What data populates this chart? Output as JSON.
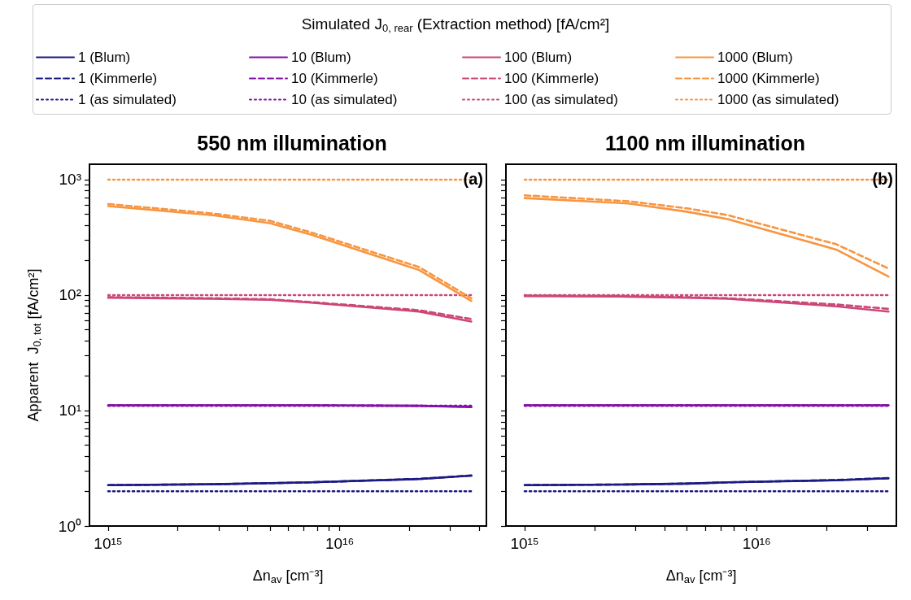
{
  "chart_data": [
    {
      "type": "line",
      "title": "550 nm illumination",
      "xlabel": "Δn$_{av}$ [cm⁻³]",
      "ylabel": "Apparent  J$_{0, tot}$ [fA/cm²]",
      "legend_title": "Simulated J$_{0, rear}$ (Extraction method) [fA/cm²]",
      "legend": "top",
      "grid": false,
      "log": "xy",
      "annotations": [
        "(a)"
      ],
      "x": [
        1000000000000000.0,
        2800000000000000.0,
        5000000000000000.0,
        7500000000000000.0,
        2.2e+16,
        3.7e+16
      ],
      "xlim": [
        830000000000000.0,
        4.3e+16
      ],
      "xticks": [
        {
          "value": 1000000000000000.0,
          "label": "10¹⁵"
        },
        {
          "value": 2000000000000000.0,
          "label": null
        },
        {
          "value": 3000000000000000.0,
          "label": null
        },
        {
          "value": 4000000000000000.0,
          "label": null
        },
        {
          "value": 5000000000000000.0,
          "label": null
        },
        {
          "value": 6000000000000000.0,
          "label": null
        },
        {
          "value": 7000000000000000.0,
          "label": null
        },
        {
          "value": 8000000000000000.0,
          "label": null
        },
        {
          "value": 9000000000000000.0,
          "label": null
        },
        {
          "value": 1e+16,
          "label": "10¹⁶"
        },
        {
          "value": 2e+16,
          "label": null
        },
        {
          "value": 3e+16,
          "label": null
        },
        {
          "value": 4e+16,
          "label": null
        }
      ],
      "ylim": [
        1,
        1360
      ],
      "yticks": [
        {
          "value": 1,
          "label": "10⁰"
        },
        {
          "value": 2,
          "label": null
        },
        {
          "value": 3,
          "label": null
        },
        {
          "value": 4,
          "label": null
        },
        {
          "value": 5,
          "label": null
        },
        {
          "value": 6,
          "label": null
        },
        {
          "value": 7,
          "label": null
        },
        {
          "value": 8,
          "label": null
        },
        {
          "value": 9,
          "label": null
        },
        {
          "value": 10,
          "label": "10¹"
        },
        {
          "value": 20,
          "label": null
        },
        {
          "value": 30,
          "label": null
        },
        {
          "value": 40,
          "label": null
        },
        {
          "value": 50,
          "label": null
        },
        {
          "value": 60,
          "label": null
        },
        {
          "value": 70,
          "label": null
        },
        {
          "value": 80,
          "label": null
        },
        {
          "value": 90,
          "label": null
        },
        {
          "value": 100,
          "label": "10²"
        },
        {
          "value": 200,
          "label": null
        },
        {
          "value": 300,
          "label": null
        },
        {
          "value": 400,
          "label": null
        },
        {
          "value": 500,
          "label": null
        },
        {
          "value": 600,
          "label": null
        },
        {
          "value": 700,
          "label": null
        },
        {
          "value": 800,
          "label": null
        },
        {
          "value": 900,
          "label": null
        },
        {
          "value": 1000,
          "label": "10³"
        }
      ],
      "series": [
        {
          "name": "1 (Blum)",
          "color": "#1c1a83",
          "line_style": "solid",
          "values": [
            2.26,
            2.3,
            2.35,
            2.39,
            2.55,
            2.73
          ]
        },
        {
          "name": "1 (Kimmerle)",
          "color": "#1c1a83",
          "line_style": "dashed",
          "values": [
            2.26,
            2.3,
            2.35,
            2.39,
            2.56,
            2.74
          ]
        },
        {
          "name": "1 (as simulated)",
          "color": "#1c1a83",
          "line_style": "dotted",
          "values": [
            2,
            2,
            2,
            2,
            2,
            2
          ]
        },
        {
          "name": "10 (Blum)",
          "color": "#8212a8",
          "line_style": "solid",
          "values": [
            11.1,
            11.1,
            11.1,
            11.1,
            11,
            10.7
          ]
        },
        {
          "name": "10 (Kimmerle)",
          "color": "#8212a8",
          "line_style": "dashed",
          "values": [
            11.1,
            11.1,
            11.1,
            11.1,
            11,
            10.8
          ]
        },
        {
          "name": "10 (as simulated)",
          "color": "#8212a8",
          "line_style": "dotted",
          "values": [
            11,
            11,
            11,
            11,
            11,
            11
          ]
        },
        {
          "name": "100 (Blum)",
          "color": "#cc4778",
          "line_style": "solid",
          "values": [
            95,
            93,
            91,
            86,
            72,
            59
          ]
        },
        {
          "name": "100 (Kimmerle)",
          "color": "#cc4778",
          "line_style": "dashed",
          "values": [
            96,
            94,
            92,
            87,
            74,
            62
          ]
        },
        {
          "name": "100 (as simulated)",
          "color": "#cc4778",
          "line_style": "dotted",
          "values": [
            100,
            100,
            100,
            100,
            100,
            100
          ]
        },
        {
          "name": "1000 (Blum)",
          "color": "#f89540",
          "line_style": "solid",
          "values": [
            590,
            493,
            420,
            334,
            165,
            89
          ]
        },
        {
          "name": "1000 (Kimmerle)",
          "color": "#f89540",
          "line_style": "dashed",
          "values": [
            615,
            510,
            440,
            350,
            175,
            94
          ]
        },
        {
          "name": "1000 (as simulated)",
          "color": "#f89540",
          "line_style": "dotted",
          "values": [
            1000,
            1000,
            1000,
            1000,
            1000,
            1000
          ]
        }
      ]
    },
    {
      "type": "line",
      "title": "1100 nm illumination",
      "xlabel": "Δn$_{av}$ [cm⁻³]",
      "grid": false,
      "log": "xy",
      "tick_labels": "x",
      "annotations": [
        "(b)"
      ],
      "x": [
        1000000000000000.0,
        2800000000000000.0,
        5000000000000000.0,
        7500000000000000.0,
        2.2e+16,
        3.7e+16
      ],
      "xlim": [
        830000000000000.0,
        4e+16
      ],
      "xticks": [
        {
          "value": 1000000000000000.0,
          "label": "10¹⁵"
        },
        {
          "value": 2000000000000000.0,
          "label": null
        },
        {
          "value": 3000000000000000.0,
          "label": null
        },
        {
          "value": 4000000000000000.0,
          "label": null
        },
        {
          "value": 5000000000000000.0,
          "label": null
        },
        {
          "value": 6000000000000000.0,
          "label": null
        },
        {
          "value": 7000000000000000.0,
          "label": null
        },
        {
          "value": 8000000000000000.0,
          "label": null
        },
        {
          "value": 9000000000000000.0,
          "label": null
        },
        {
          "value": 1e+16,
          "label": "10¹⁶"
        },
        {
          "value": 2e+16,
          "label": null
        },
        {
          "value": 3e+16,
          "label": null
        }
      ],
      "ylim": [
        1,
        1360
      ],
      "yticks": [
        {
          "value": 1,
          "label": null
        },
        {
          "value": 2,
          "label": null
        },
        {
          "value": 3,
          "label": null
        },
        {
          "value": 4,
          "label": null
        },
        {
          "value": 5,
          "label": null
        },
        {
          "value": 6,
          "label": null
        },
        {
          "value": 7,
          "label": null
        },
        {
          "value": 8,
          "label": null
        },
        {
          "value": 9,
          "label": null
        },
        {
          "value": 10,
          "label": null
        },
        {
          "value": 20,
          "label": null
        },
        {
          "value": 30,
          "label": null
        },
        {
          "value": 40,
          "label": null
        },
        {
          "value": 50,
          "label": null
        },
        {
          "value": 60,
          "label": null
        },
        {
          "value": 70,
          "label": null
        },
        {
          "value": 80,
          "label": null
        },
        {
          "value": 90,
          "label": null
        },
        {
          "value": 100,
          "label": null
        },
        {
          "value": 200,
          "label": null
        },
        {
          "value": 300,
          "label": null
        },
        {
          "value": 400,
          "label": null
        },
        {
          "value": 500,
          "label": null
        },
        {
          "value": 600,
          "label": null
        },
        {
          "value": 700,
          "label": null
        },
        {
          "value": 800,
          "label": null
        },
        {
          "value": 900,
          "label": null
        },
        {
          "value": 1000,
          "label": null
        }
      ],
      "series": [
        {
          "color": "#1c1a83",
          "line_style": "solid",
          "values": [
            2.26,
            2.29,
            2.33,
            2.39,
            2.49,
            2.59
          ]
        },
        {
          "color": "#1c1a83",
          "line_style": "dashed",
          "values": [
            2.26,
            2.29,
            2.33,
            2.39,
            2.5,
            2.6
          ]
        },
        {
          "color": "#1c1a83",
          "line_style": "dotted",
          "values": [
            2,
            2,
            2,
            2,
            2,
            2
          ]
        },
        {
          "color": "#8212a8",
          "line_style": "solid",
          "values": [
            11.1,
            11.1,
            11.1,
            11.1,
            11.1,
            11.1
          ]
        },
        {
          "color": "#8212a8",
          "line_style": "dashed",
          "values": [
            11.1,
            11.1,
            11.1,
            11.1,
            11.1,
            11.1
          ]
        },
        {
          "color": "#8212a8",
          "line_style": "dotted",
          "values": [
            11,
            11,
            11,
            11,
            11,
            11
          ]
        },
        {
          "color": "#cc4778",
          "line_style": "solid",
          "values": [
            98,
            97,
            95,
            93,
            80,
            72
          ]
        },
        {
          "color": "#cc4778",
          "line_style": "dashed",
          "values": [
            99,
            98,
            96,
            94,
            83,
            76
          ]
        },
        {
          "color": "#cc4778",
          "line_style": "dotted",
          "values": [
            100,
            100,
            100,
            100,
            100,
            100
          ]
        },
        {
          "color": "#f89540",
          "line_style": "solid",
          "values": [
            693,
            622,
            528,
            455,
            248,
            145
          ]
        },
        {
          "color": "#f89540",
          "line_style": "dashed",
          "values": [
            731,
            650,
            564,
            493,
            276,
            170
          ]
        },
        {
          "color": "#f89540",
          "line_style": "dotted",
          "values": [
            1000,
            1000,
            1000,
            1000,
            1000,
            1000
          ]
        }
      ]
    }
  ]
}
